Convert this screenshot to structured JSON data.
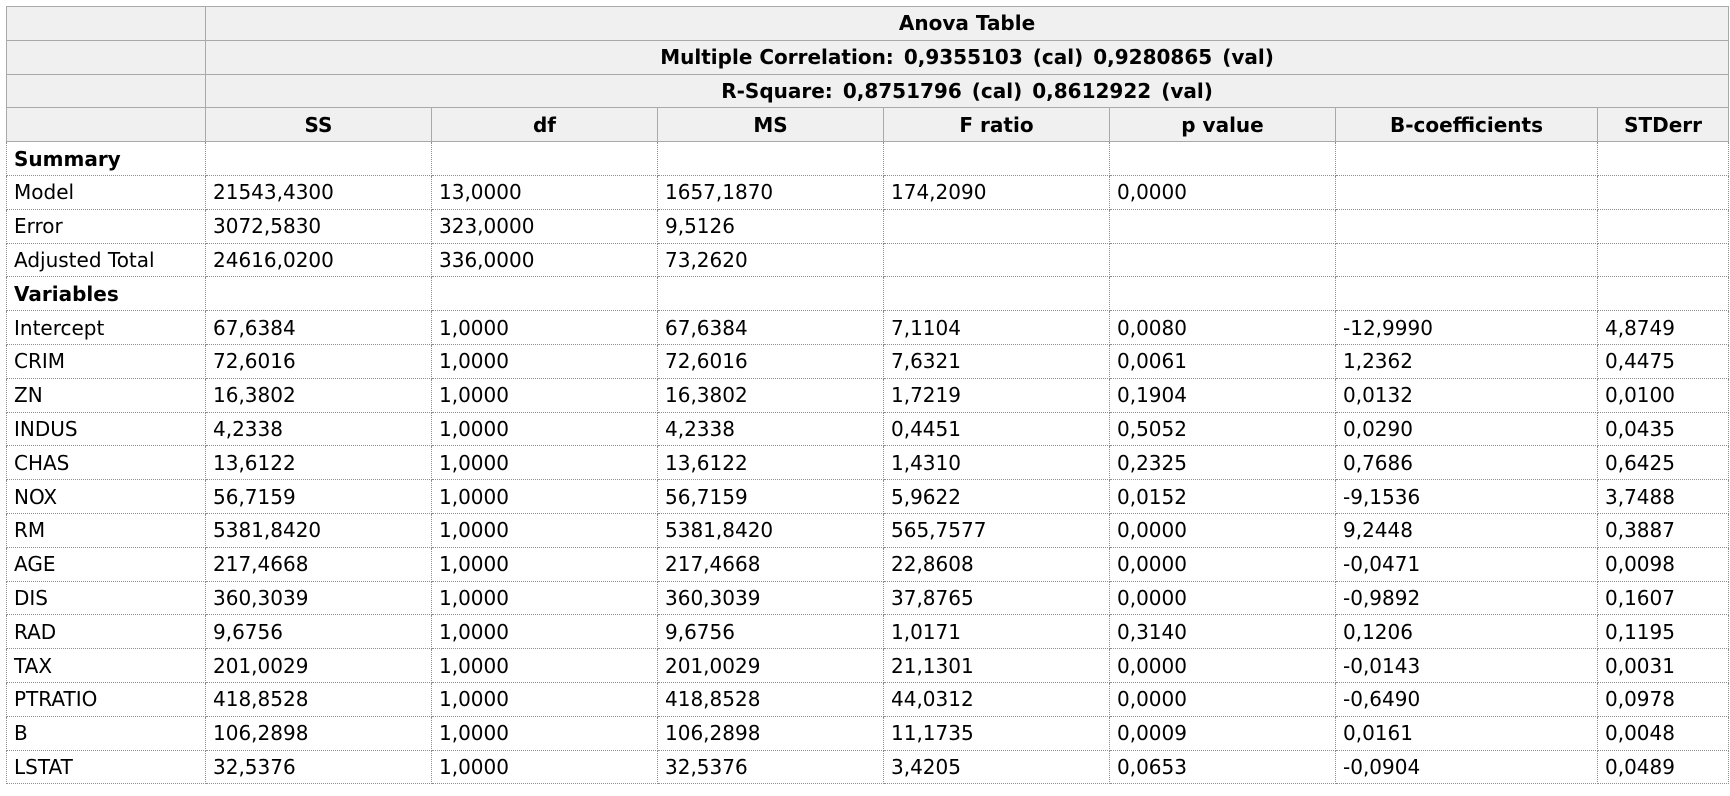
{
  "table": {
    "title": "Anova Table",
    "multiple_correlation": {
      "label": "Multiple Correlation:",
      "cal_value": "0,9355103",
      "cal_tag": "(cal)",
      "val_value": "0,9280865",
      "val_tag": "(val)"
    },
    "r_square": {
      "label": "R-Square:",
      "cal_value": "0,8751796",
      "cal_tag": "(cal)",
      "val_value": "0,8612922",
      "val_tag": "(val)"
    },
    "columns": [
      "SS",
      "df",
      "MS",
      "F ratio",
      "p value",
      "B-coefficients",
      "STDerr"
    ],
    "rows": [
      {
        "label": "Summary",
        "section": true,
        "cells": [
          "",
          "",
          "",
          "",
          "",
          "",
          ""
        ]
      },
      {
        "label": "Model",
        "cells": [
          "21543,4300",
          "13,0000",
          "1657,1870",
          "174,2090",
          "0,0000",
          "",
          ""
        ]
      },
      {
        "label": "Error",
        "cells": [
          "3072,5830",
          "323,0000",
          "9,5126",
          "",
          "",
          "",
          ""
        ]
      },
      {
        "label": "Adjusted Total",
        "cells": [
          "24616,0200",
          "336,0000",
          "73,2620",
          "",
          "",
          "",
          ""
        ]
      },
      {
        "label": "Variables",
        "section": true,
        "cells": [
          "",
          "",
          "",
          "",
          "",
          "",
          ""
        ]
      },
      {
        "label": "Intercept",
        "cells": [
          "67,6384",
          "1,0000",
          "67,6384",
          "7,1104",
          "0,0080",
          "-12,9990",
          "4,8749"
        ]
      },
      {
        "label": "CRIM",
        "cells": [
          "72,6016",
          "1,0000",
          "72,6016",
          "7,6321",
          "0,0061",
          "1,2362",
          "0,4475"
        ]
      },
      {
        "label": "ZN",
        "cells": [
          "16,3802",
          "1,0000",
          "16,3802",
          "1,7219",
          "0,1904",
          "0,0132",
          "0,0100"
        ]
      },
      {
        "label": "INDUS",
        "cells": [
          "4,2338",
          "1,0000",
          "4,2338",
          "0,4451",
          "0,5052",
          "0,0290",
          "0,0435"
        ]
      },
      {
        "label": "CHAS",
        "cells": [
          "13,6122",
          "1,0000",
          "13,6122",
          "1,4310",
          "0,2325",
          "0,7686",
          "0,6425"
        ]
      },
      {
        "label": "NOX",
        "cells": [
          "56,7159",
          "1,0000",
          "56,7159",
          "5,9622",
          "0,0152",
          "-9,1536",
          "3,7488"
        ]
      },
      {
        "label": "RM",
        "cells": [
          "5381,8420",
          "1,0000",
          "5381,8420",
          "565,7577",
          "0,0000",
          "9,2448",
          "0,3887"
        ]
      },
      {
        "label": "AGE",
        "cells": [
          "217,4668",
          "1,0000",
          "217,4668",
          "22,8608",
          "0,0000",
          "-0,0471",
          "0,0098"
        ]
      },
      {
        "label": "DIS",
        "cells": [
          "360,3039",
          "1,0000",
          "360,3039",
          "37,8765",
          "0,0000",
          "-0,9892",
          "0,1607"
        ]
      },
      {
        "label": "RAD",
        "cells": [
          "9,6756",
          "1,0000",
          "9,6756",
          "1,0171",
          "0,3140",
          "0,1206",
          "0,1195"
        ]
      },
      {
        "label": "TAX",
        "cells": [
          "201,0029",
          "1,0000",
          "201,0029",
          "21,1301",
          "0,0000",
          "-0,0143",
          "0,0031"
        ]
      },
      {
        "label": "PTRATIO",
        "cells": [
          "418,8528",
          "1,0000",
          "418,8528",
          "44,0312",
          "0,0000",
          "-0,6490",
          "0,0978"
        ]
      },
      {
        "label": "B",
        "cells": [
          "106,2898",
          "1,0000",
          "106,2898",
          "11,1735",
          "0,0009",
          "0,0161",
          "0,0048"
        ]
      },
      {
        "label": "LSTAT",
        "cells": [
          "32,5376",
          "1,0000",
          "32,5376",
          "3,4205",
          "0,0653",
          "-0,0904",
          "0,0489"
        ]
      }
    ]
  }
}
